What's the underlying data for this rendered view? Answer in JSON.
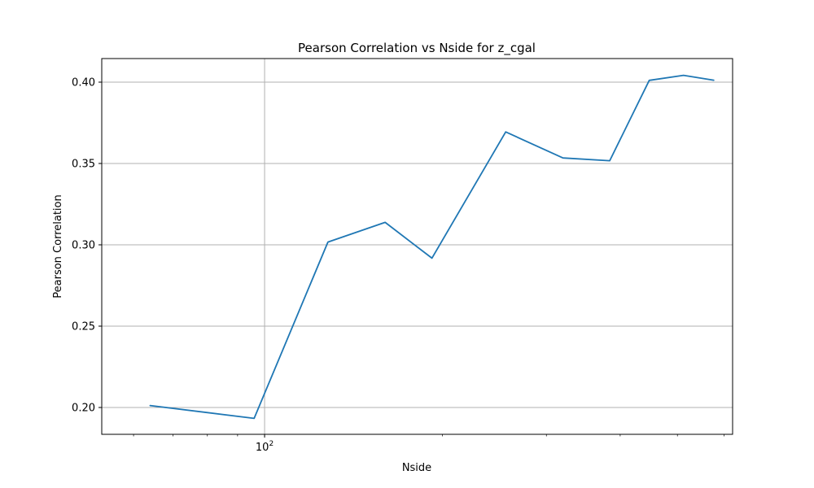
{
  "chart_data": {
    "type": "line",
    "title": "Pearson Correlation vs Nside for z_cgal",
    "xlabel": "Nside",
    "ylabel": "Pearson Correlation",
    "xscale": "log",
    "xlim": [
      53,
      620
    ],
    "ylim": [
      0.1835,
      0.4145
    ],
    "grid": true,
    "legend": null,
    "colors": {
      "series": "#1f77b4",
      "grid": "#b0b0b0"
    },
    "x_ticks": [
      {
        "value": 100,
        "base": "10",
        "exp": "2"
      }
    ],
    "x_minor_ticks": [
      60,
      70,
      80,
      90,
      200,
      300,
      400,
      500,
      600
    ],
    "y_ticks": [
      {
        "value": 0.2,
        "label": "0.20"
      },
      {
        "value": 0.25,
        "label": "0.25"
      },
      {
        "value": 0.3,
        "label": "0.30"
      },
      {
        "value": 0.35,
        "label": "0.35"
      },
      {
        "value": 0.4,
        "label": "0.40"
      }
    ],
    "series": [
      {
        "x": [
          64,
          96,
          128,
          160,
          192,
          256,
          320,
          384,
          448,
          512,
          576
        ],
        "y": [
          0.2012,
          0.1933,
          0.3017,
          0.3138,
          0.2918,
          0.3694,
          0.3534,
          0.3517,
          0.4011,
          0.4042,
          0.4012
        ]
      }
    ]
  }
}
